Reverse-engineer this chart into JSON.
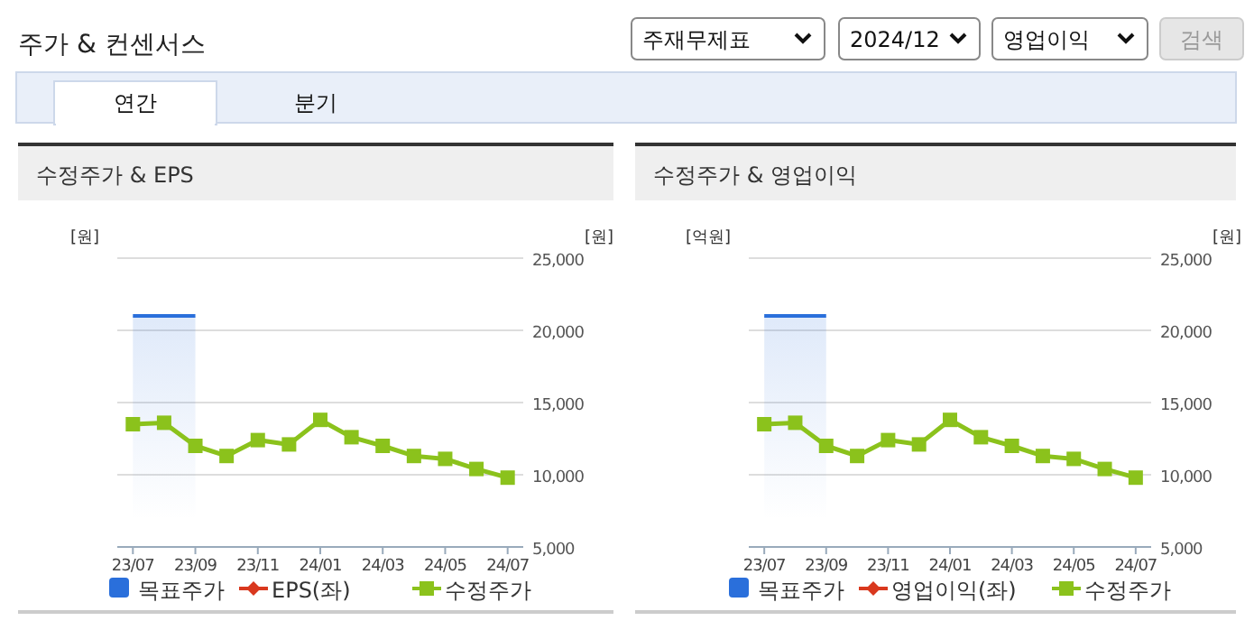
{
  "chart_data": [
    {
      "type": "other",
      "title": "주가 & 컨센서스",
      "annotations": [
        "주재무제표",
        "2024/12",
        "영업이익",
        "검색",
        "연간",
        "분기"
      ]
    },
    {
      "type": "line",
      "title": "수정주가 & EPS",
      "ylabel": "[원]",
      "y2label": "[원]",
      "categories": [
        "23/07",
        null,
        "23/09",
        null,
        "23/11",
        null,
        "24/01",
        null,
        "24/03",
        null,
        "24/05",
        null,
        "24/07"
      ],
      "y2lim": [
        5000,
        25000
      ],
      "y2ticks": [
        {
          "value": 5000,
          "label": "5,000"
        },
        {
          "value": 10000,
          "label": "10,000"
        },
        {
          "value": 15000,
          "label": "15,000"
        },
        {
          "value": 20000,
          "label": "20,000"
        },
        {
          "value": 25000,
          "label": "25,000"
        }
      ],
      "grid": "y",
      "legend": "bottom",
      "series": [
        {
          "name": "목표주가",
          "type": "area",
          "axis": "y2",
          "color": "#2a6fdb",
          "values": [
            21000,
            21000,
            21000,
            null,
            null,
            null,
            null,
            null,
            null,
            null,
            null,
            null,
            null
          ]
        },
        {
          "name": "EPS(좌)",
          "type": "line",
          "axis": "y",
          "color": "#d9381e",
          "marker": "diamond",
          "values": [
            null,
            null,
            null,
            null,
            null,
            null,
            null,
            null,
            null,
            null,
            null,
            null,
            null
          ]
        },
        {
          "name": "수정주가",
          "type": "line",
          "axis": "y2",
          "color": "#8bc21c",
          "marker": "square",
          "values": [
            13500,
            13600,
            12000,
            11300,
            12400,
            12100,
            13800,
            12600,
            12000,
            11300,
            11100,
            10400,
            9800
          ]
        }
      ]
    },
    {
      "type": "line",
      "title": "수정주가 & 영업이익",
      "ylabel": "[억원]",
      "y2label": "[원]",
      "categories": [
        "23/07",
        null,
        "23/09",
        null,
        "23/11",
        null,
        "24/01",
        null,
        "24/03",
        null,
        "24/05",
        null,
        "24/07"
      ],
      "y2lim": [
        5000,
        25000
      ],
      "y2ticks": [
        {
          "value": 5000,
          "label": "5,000"
        },
        {
          "value": 10000,
          "label": "10,000"
        },
        {
          "value": 15000,
          "label": "15,000"
        },
        {
          "value": 20000,
          "label": "20,000"
        },
        {
          "value": 25000,
          "label": "25,000"
        }
      ],
      "grid": "y",
      "legend": "bottom",
      "series": [
        {
          "name": "목표주가",
          "type": "area",
          "axis": "y2",
          "color": "#2a6fdb",
          "values": [
            21000,
            21000,
            21000,
            null,
            null,
            null,
            null,
            null,
            null,
            null,
            null,
            null,
            null
          ]
        },
        {
          "name": "영업이익(좌)",
          "type": "line",
          "axis": "y",
          "color": "#d9381e",
          "marker": "diamond",
          "values": [
            null,
            null,
            null,
            null,
            null,
            null,
            null,
            null,
            null,
            null,
            null,
            null,
            null
          ]
        },
        {
          "name": "수정주가",
          "type": "line",
          "axis": "y2",
          "color": "#8bc21c",
          "marker": "square",
          "values": [
            13500,
            13600,
            12000,
            11300,
            12400,
            12100,
            13800,
            12600,
            12000,
            11300,
            11100,
            10400,
            9800
          ]
        }
      ]
    }
  ]
}
